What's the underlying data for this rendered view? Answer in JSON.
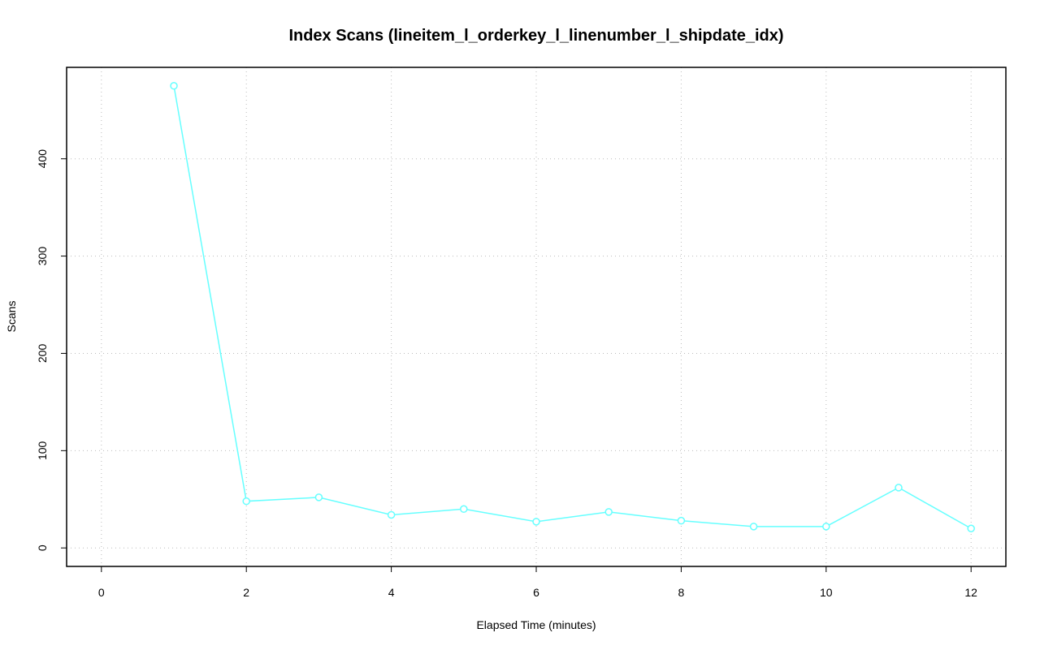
{
  "chart_data": {
    "type": "line",
    "title": "Index Scans (lineitem_l_orderkey_l_linenumber_l_shipdate_idx)",
    "x_label": "Elapsed Time (minutes)",
    "y_label": "Scans",
    "x": [
      1,
      2,
      3,
      4,
      5,
      6,
      7,
      8,
      9,
      10,
      11,
      12
    ],
    "values": [
      475,
      48,
      52,
      34,
      40,
      27,
      37,
      28,
      22,
      22,
      62,
      20
    ],
    "color": "#66ffff",
    "xlim": [
      -0.48,
      12.48
    ],
    "xticks": [
      0,
      2,
      4,
      6,
      8,
      10,
      12
    ],
    "ylim": [
      -19,
      494
    ],
    "yticks": [
      0,
      100,
      200,
      300,
      400
    ],
    "grid": true
  }
}
